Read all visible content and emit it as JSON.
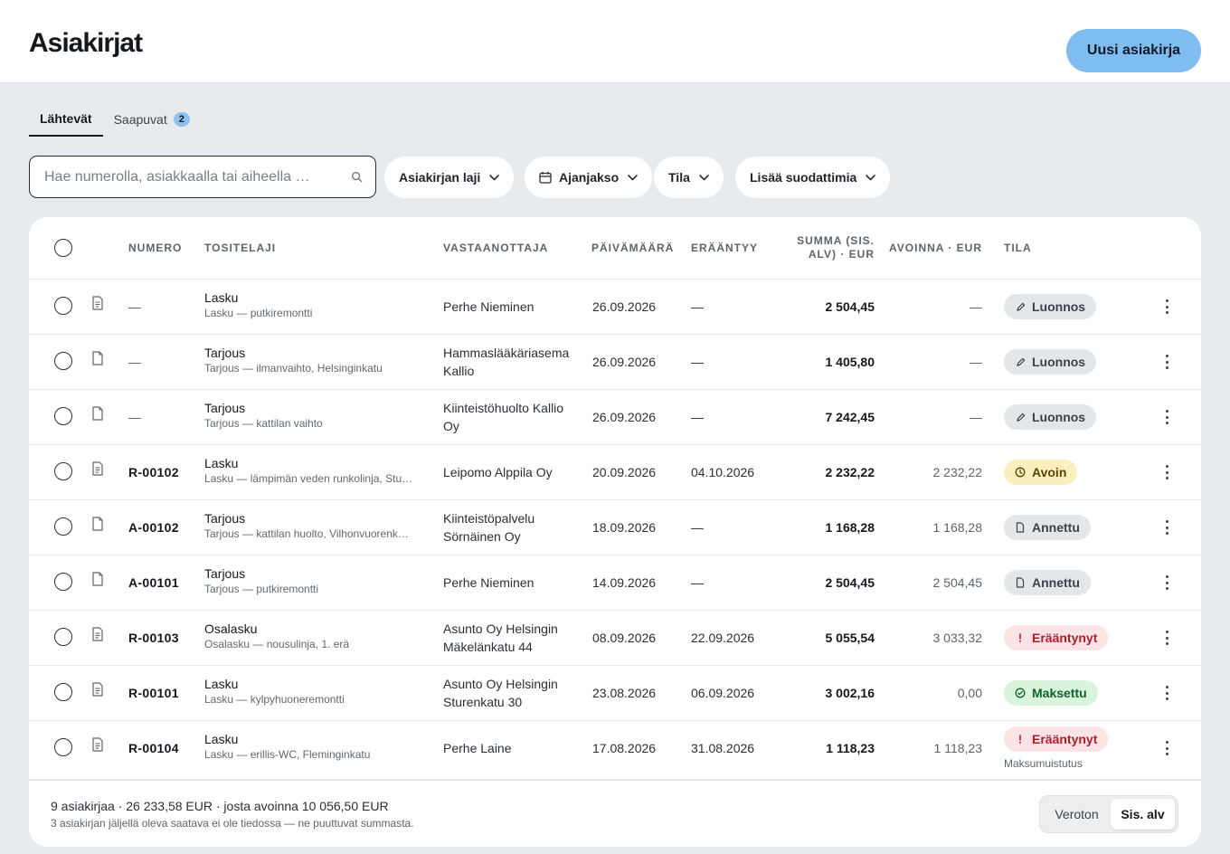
{
  "header": {
    "title": "Asiakirjat",
    "new_button": "Uusi asiakirja"
  },
  "tabs": [
    {
      "label": "Lähtevät",
      "active": true
    },
    {
      "label": "Saapuvat",
      "badge": "2",
      "active": false
    }
  ],
  "search": {
    "placeholder": "Hae numerolla, asiakkaalla tai aiheella …",
    "value": ""
  },
  "filters": {
    "doc_type": "Asiakirjan laji",
    "period": "Ajanjakso",
    "status": "Tila",
    "more": "Lisää suodattimia"
  },
  "table": {
    "headers": {
      "number": "NUMERO",
      "type": "TOSITELAJI",
      "recipient": "VASTAANOTTAJA",
      "date": "PÄIVÄMÄÄRÄ",
      "due": "ERÄÄNTYY",
      "sum_line1": "SUMMA (SIS.",
      "sum_line2": "ALV) · EUR",
      "open": "AVOINNA · EUR",
      "status": "TILA"
    },
    "rows": [
      {
        "number": "—",
        "type": "Lasku",
        "subtitle": "Lasku — putkiremontti",
        "recipient": "Perhe Nieminen",
        "date": "26.09.2026",
        "due": "—",
        "sum": "2 504,45",
        "open": "—",
        "status": "Luonnos",
        "status_kind": "draft"
      },
      {
        "number": "—",
        "type": "Tarjous",
        "subtitle": "Tarjous — ilmanvaihto, Helsinginkatu",
        "recipient": "Hammaslääkäriasema Kallio",
        "date": "26.09.2026",
        "due": "—",
        "sum": "1 405,80",
        "open": "—",
        "status": "Luonnos",
        "status_kind": "draft"
      },
      {
        "number": "—",
        "type": "Tarjous",
        "subtitle": "Tarjous — kattilan vaihto",
        "recipient": "Kiinteistöhuolto Kallio Oy",
        "date": "26.09.2026",
        "due": "—",
        "sum": "7 242,45",
        "open": "—",
        "status": "Luonnos",
        "status_kind": "draft"
      },
      {
        "number": "R-00102",
        "type": "Lasku",
        "subtitle": "Lasku — lämpimän veden runkolinja, Stu…",
        "recipient": "Leipomo Alppila Oy",
        "date": "20.09.2026",
        "due": "04.10.2026",
        "sum": "2 232,22",
        "open": "2 232,22",
        "status": "Avoin",
        "status_kind": "open"
      },
      {
        "number": "A-00102",
        "type": "Tarjous",
        "subtitle": "Tarjous — kattilan huolto, Vilhonvuorenk…",
        "recipient": "Kiinteistöpalvelu Sörnäinen Oy",
        "date": "18.09.2026",
        "due": "—",
        "sum": "1 168,28",
        "open": "1 168,28",
        "status": "Annettu",
        "status_kind": "issued"
      },
      {
        "number": "A-00101",
        "type": "Tarjous",
        "subtitle": "Tarjous — putkiremontti",
        "recipient": "Perhe Nieminen",
        "date": "14.09.2026",
        "due": "—",
        "sum": "2 504,45",
        "open": "2 504,45",
        "status": "Annettu",
        "status_kind": "issued"
      },
      {
        "number": "R-00103",
        "type": "Osalasku",
        "subtitle": "Osalasku — nousulinja, 1. erä",
        "recipient": "Asunto Oy Helsingin Mäkelänkatu 44",
        "date": "08.09.2026",
        "due": "22.09.2026",
        "sum": "5 055,54",
        "open": "3 033,32",
        "status": "Erääntynyt",
        "status_kind": "overdue"
      },
      {
        "number": "R-00101",
        "type": "Lasku",
        "subtitle": "Lasku — kylpyhuoneremontti",
        "recipient": "Asunto Oy Helsingin Sturenkatu 30",
        "date": "23.08.2026",
        "due": "06.09.2026",
        "sum": "3 002,16",
        "open": "0,00",
        "status": "Maksettu",
        "status_kind": "paid"
      },
      {
        "number": "R-00104",
        "type": "Lasku",
        "subtitle": "Lasku — erillis-WC, Fleminginkatu",
        "recipient": "Perhe Laine",
        "date": "17.08.2026",
        "due": "31.08.2026",
        "sum": "1 118,23",
        "open": "1 118,23",
        "status": "Erääntynyt",
        "status_kind": "overdue",
        "status_note": "Maksumuistutus"
      }
    ]
  },
  "footer": {
    "summary": "9 asiakirjaa · 26 233,58 EUR · josta avoinna 10 056,50 EUR",
    "note": "3 asiakirjan jäljellä oleva saatava ei ole tiedossa — ne puuttuvat summasta.",
    "toggle_off": "Veroton",
    "toggle_on": "Sis. alv"
  },
  "colors": {
    "primary": "#7fbcf0",
    "draft": "#e4e7ea",
    "open": "#fbefc1",
    "overdue": "#fde3e5",
    "paid": "#d9f4dd"
  }
}
